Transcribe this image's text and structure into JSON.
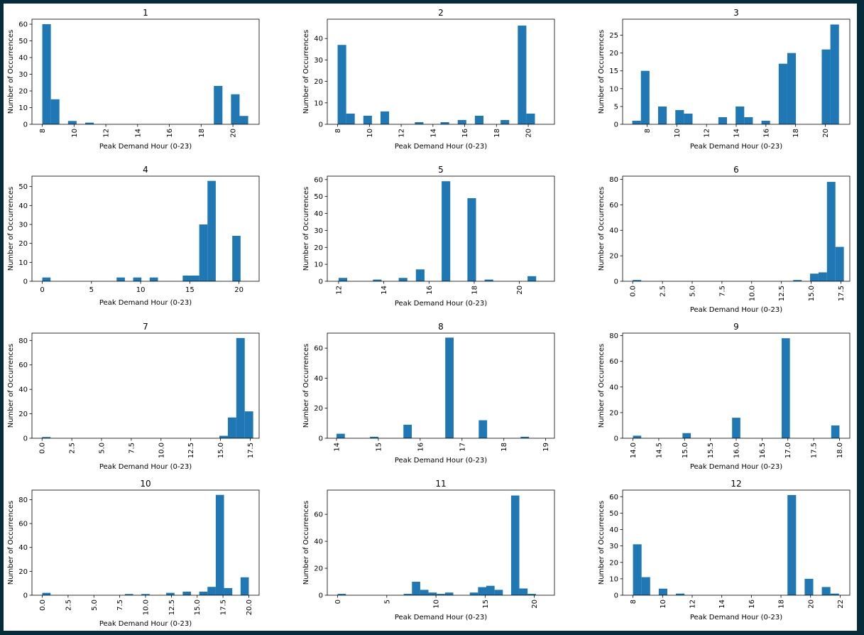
{
  "chart_data": [
    {
      "type": "bar",
      "title": "1",
      "xlabel": "Peak Demand Hour (0-23)",
      "ylabel": "Number of Occurrences",
      "xlim": [
        7.35,
        21.65
      ],
      "ylim": [
        0,
        63
      ],
      "xticks": [
        "8",
        "10",
        "12",
        "14",
        "16",
        "18",
        "20"
      ],
      "xtick_values": [
        8,
        10,
        12,
        14,
        16,
        18,
        20
      ],
      "xtick_rotation": 90,
      "yticks": [
        "0",
        "10",
        "20",
        "30",
        "40",
        "50",
        "60"
      ],
      "ytick_values": [
        0,
        10,
        20,
        30,
        40,
        50,
        60
      ],
      "bin_edges": [
        8.0,
        8.54,
        9.08,
        9.62,
        10.16,
        10.7,
        11.24,
        11.78,
        12.32,
        12.86,
        13.4,
        13.94,
        14.48,
        15.02,
        15.56,
        16.1,
        16.64,
        17.18,
        17.72,
        18.26,
        18.8,
        19.34,
        19.88,
        20.42,
        20.96,
        21.5
      ],
      "values": [
        60,
        15,
        0,
        2,
        0,
        1,
        0,
        0,
        0,
        0,
        0,
        0,
        0,
        0,
        0,
        0,
        0,
        0,
        0,
        0,
        23,
        0,
        18,
        5,
        0
      ]
    },
    {
      "type": "bar",
      "title": "2",
      "xlabel": "Peak Demand Hour (0-23)",
      "ylabel": "Number of Occurrences",
      "xlim": [
        7.35,
        21.65
      ],
      "ylim": [
        0,
        49
      ],
      "xticks": [
        "8",
        "10",
        "12",
        "14",
        "16",
        "18",
        "20"
      ],
      "xtick_values": [
        8,
        10,
        12,
        14,
        16,
        18,
        20
      ],
      "xtick_rotation": 90,
      "yticks": [
        "0",
        "10",
        "20",
        "30",
        "40"
      ],
      "ytick_values": [
        0,
        10,
        20,
        30,
        40
      ],
      "bin_edges": [
        8.0,
        8.54,
        9.08,
        9.62,
        10.16,
        10.7,
        11.24,
        11.78,
        12.32,
        12.86,
        13.4,
        13.94,
        14.48,
        15.02,
        15.56,
        16.1,
        16.64,
        17.18,
        17.72,
        18.26,
        18.8,
        19.34,
        19.88,
        20.42,
        20.96,
        21.5
      ],
      "values": [
        37,
        5,
        0,
        4,
        0,
        6,
        0,
        0,
        0,
        1,
        0,
        0,
        1,
        0,
        2,
        0,
        4,
        0,
        0,
        2,
        0,
        46,
        5,
        0,
        0
      ]
    },
    {
      "type": "bar",
      "title": "3",
      "xlabel": "Peak Demand Hour (0-23)",
      "ylabel": "Number of Occurrences",
      "xlim": [
        6.35,
        21.65
      ],
      "ylim": [
        0,
        29.5
      ],
      "xticks": [
        "8",
        "10",
        "12",
        "14",
        "16",
        "18",
        "20"
      ],
      "xtick_values": [
        8,
        10,
        12,
        14,
        16,
        18,
        20
      ],
      "xtick_rotation": 90,
      "yticks": [
        "0",
        "5",
        "10",
        "15",
        "20",
        "25"
      ],
      "ytick_values": [
        0,
        5,
        10,
        15,
        20,
        25
      ],
      "bin_edges": [
        7.0,
        7.58,
        8.16,
        8.74,
        9.32,
        9.9,
        10.48,
        11.06,
        11.64,
        12.22,
        12.8,
        13.38,
        13.96,
        14.54,
        15.12,
        15.7,
        16.28,
        16.86,
        17.44,
        18.02,
        18.6,
        19.18,
        19.76,
        20.34,
        20.92,
        21.5
      ],
      "values": [
        1,
        15,
        0,
        5,
        0,
        4,
        3,
        0,
        0,
        0,
        2,
        0,
        5,
        2,
        0,
        1,
        0,
        17,
        20,
        0,
        0,
        0,
        21,
        28,
        0
      ]
    },
    {
      "type": "bar",
      "title": "4",
      "xlabel": "Peak Demand Hour (0-23)",
      "ylabel": "Number of Occurrences",
      "xlim": [
        -1.05,
        22.05
      ],
      "ylim": [
        0,
        55.5
      ],
      "xticks": [
        "0",
        "5",
        "10",
        "15",
        "20"
      ],
      "xtick_values": [
        0,
        5,
        10,
        15,
        20
      ],
      "xtick_rotation": 0,
      "yticks": [
        "0",
        "10",
        "20",
        "30",
        "40",
        "50"
      ],
      "ytick_values": [
        0,
        10,
        20,
        30,
        40,
        50
      ],
      "bin_edges": [
        0.0,
        0.84,
        1.68,
        2.52,
        3.36,
        4.2,
        5.04,
        5.88,
        6.72,
        7.56,
        8.4,
        9.24,
        10.08,
        10.92,
        11.76,
        12.6,
        13.44,
        14.28,
        15.12,
        15.96,
        16.8,
        17.64,
        18.48,
        19.32,
        20.16,
        21.0
      ],
      "values": [
        2,
        0,
        0,
        0,
        0,
        0,
        0,
        0,
        0,
        2,
        0,
        2,
        0,
        2,
        0,
        0,
        0,
        3,
        3,
        30,
        53,
        0,
        0,
        24,
        0
      ]
    },
    {
      "type": "bar",
      "title": "5",
      "xlabel": "Peak Demand Hour (0-23)",
      "ylabel": "Number of Occurrences",
      "xlim": [
        11.5,
        21.55
      ],
      "ylim": [
        0,
        62
      ],
      "xticks": [
        "12",
        "14",
        "16",
        "18",
        "20"
      ],
      "xtick_values": [
        12,
        14,
        16,
        18,
        20
      ],
      "xtick_rotation": 90,
      "yticks": [
        "0",
        "10",
        "20",
        "30",
        "40",
        "50",
        "60"
      ],
      "ytick_values": [
        0,
        10,
        20,
        30,
        40,
        50,
        60
      ],
      "bin_edges": [
        12.0,
        12.38,
        12.76,
        13.14,
        13.52,
        13.9,
        14.28,
        14.66,
        15.04,
        15.42,
        15.8,
        16.18,
        16.56,
        16.94,
        17.32,
        17.7,
        18.08,
        18.46,
        18.84,
        19.22,
        19.6,
        19.98,
        20.36,
        20.74,
        21.12,
        21.5
      ],
      "values": [
        2,
        0,
        0,
        0,
        1,
        0,
        0,
        2,
        0,
        7,
        0,
        0,
        59,
        0,
        0,
        49,
        0,
        1,
        0,
        0,
        0,
        0,
        3,
        0,
        0
      ]
    },
    {
      "type": "bar",
      "title": "6",
      "xlabel": "Peak Demand Hour (0-23)",
      "ylabel": "Number of Occurrences",
      "xlim": [
        -0.85,
        18.25
      ],
      "ylim": [
        0,
        82.5
      ],
      "xticks": [
        "0.0",
        "2.5",
        "5.0",
        "7.5",
        "10.0",
        "12.5",
        "15.0",
        "17.5"
      ],
      "xtick_values": [
        0,
        2.5,
        5,
        7.5,
        10,
        12.5,
        15,
        17.5
      ],
      "xtick_rotation": 90,
      "yticks": [
        "0",
        "20",
        "40",
        "60",
        "80"
      ],
      "ytick_values": [
        0,
        20,
        40,
        60,
        80
      ],
      "bin_edges": [
        0.0,
        0.71,
        1.42,
        2.13,
        2.84,
        3.55,
        4.26,
        4.97,
        5.68,
        6.39,
        7.1,
        7.81,
        8.52,
        9.23,
        9.94,
        10.65,
        11.36,
        12.07,
        12.78,
        13.49,
        14.2,
        14.91,
        15.62,
        16.33,
        17.04,
        17.75
      ],
      "values": [
        1,
        0,
        0,
        0,
        0,
        0,
        0,
        0,
        0,
        0,
        0,
        0,
        0,
        0,
        0,
        0,
        0,
        0,
        0,
        1,
        0,
        6,
        7,
        78,
        27
      ]
    },
    {
      "type": "bar",
      "title": "7",
      "xlabel": "Peak Demand Hour (0-23)",
      "ylabel": "Number of Occurrences",
      "xlim": [
        -0.85,
        18.25
      ],
      "ylim": [
        0,
        86
      ],
      "xticks": [
        "0.0",
        "2.5",
        "5.0",
        "7.5",
        "10.0",
        "12.5",
        "15.0",
        "17.5"
      ],
      "xtick_values": [
        0,
        2.5,
        5,
        7.5,
        10,
        12.5,
        15,
        17.5
      ],
      "xtick_rotation": 90,
      "yticks": [
        "0",
        "20",
        "40",
        "60",
        "80"
      ],
      "ytick_values": [
        0,
        20,
        40,
        60,
        80
      ],
      "bin_edges": [
        0.0,
        0.71,
        1.42,
        2.13,
        2.84,
        3.55,
        4.26,
        4.97,
        5.68,
        6.39,
        7.1,
        7.81,
        8.52,
        9.23,
        9.94,
        10.65,
        11.36,
        12.07,
        12.78,
        13.49,
        14.2,
        14.91,
        15.62,
        16.33,
        17.04,
        17.75
      ],
      "values": [
        1,
        0,
        0,
        0,
        0,
        0,
        0,
        0,
        0,
        0,
        0,
        0,
        0,
        0,
        0,
        0,
        0,
        0,
        0,
        0,
        0,
        2,
        17,
        82,
        22
      ]
    },
    {
      "type": "bar",
      "title": "8",
      "xlabel": "Peak Demand Hour (0-23)",
      "ylabel": "Number of Occurrences",
      "xlim": [
        13.78,
        19.21
      ],
      "ylim": [
        0,
        70
      ],
      "xticks": [
        "14",
        "15",
        "16",
        "17",
        "18",
        "19"
      ],
      "xtick_values": [
        14,
        15,
        16,
        17,
        18,
        19
      ],
      "xtick_rotation": 90,
      "yticks": [
        "0",
        "20",
        "40",
        "60"
      ],
      "ytick_values": [
        0,
        20,
        40,
        60
      ],
      "bin_edges": [
        14.0,
        14.2,
        14.4,
        14.6,
        14.8,
        15.0,
        15.2,
        15.4,
        15.6,
        15.8,
        16.0,
        16.2,
        16.4,
        16.6,
        16.8,
        17.0,
        17.2,
        17.4,
        17.6,
        17.8,
        18.0,
        18.2,
        18.4,
        18.6,
        18.8,
        19.0
      ],
      "values": [
        3,
        0,
        0,
        0,
        1,
        0,
        0,
        0,
        9,
        0,
        0,
        0,
        0,
        67,
        0,
        0,
        0,
        12,
        0,
        0,
        0,
        0,
        1,
        0,
        0
      ]
    },
    {
      "type": "bar",
      "title": "9",
      "xlabel": "Peak Demand Hour (0-23)",
      "ylabel": "Number of Occurrences",
      "xlim": [
        13.8,
        18.2
      ],
      "ylim": [
        0,
        82
      ],
      "xticks": [
        "14.0",
        "14.5",
        "15.0",
        "15.5",
        "16.0",
        "16.5",
        "17.0",
        "17.5",
        "18.0"
      ],
      "xtick_values": [
        14,
        14.5,
        15,
        15.5,
        16,
        16.5,
        17,
        17.5,
        18
      ],
      "xtick_rotation": 90,
      "yticks": [
        "0",
        "20",
        "40",
        "60",
        "80"
      ],
      "ytick_values": [
        0,
        20,
        40,
        60,
        80
      ],
      "bin_edges": [
        14.0,
        14.16,
        14.32,
        14.48,
        14.64,
        14.8,
        14.96,
        15.12,
        15.28,
        15.44,
        15.6,
        15.76,
        15.92,
        16.08,
        16.24,
        16.4,
        16.56,
        16.72,
        16.88,
        17.04,
        17.2,
        17.36,
        17.52,
        17.68,
        17.84,
        18.0
      ],
      "values": [
        2,
        0,
        0,
        0,
        0,
        0,
        4,
        0,
        0,
        0,
        0,
        0,
        16,
        0,
        0,
        0,
        0,
        0,
        78,
        0,
        0,
        0,
        0,
        0,
        10
      ]
    },
    {
      "type": "bar",
      "title": "10",
      "xlabel": "Peak Demand Hour (0-23)",
      "ylabel": "Number of Occurrences",
      "xlim": [
        -1.0,
        21.0
      ],
      "ylim": [
        0,
        88
      ],
      "xticks": [
        "0.0",
        "2.5",
        "5.0",
        "7.5",
        "10.0",
        "12.5",
        "15.0",
        "17.5",
        "20.0"
      ],
      "xtick_values": [
        0,
        2.5,
        5,
        7.5,
        10,
        12.5,
        15,
        17.5,
        20
      ],
      "xtick_rotation": 90,
      "yticks": [
        "0",
        "20",
        "40",
        "60",
        "80"
      ],
      "ytick_values": [
        0,
        20,
        40,
        60,
        80
      ],
      "bin_edges": [
        0.0,
        0.8,
        1.6,
        2.4,
        3.2,
        4.0,
        4.8,
        5.6,
        6.4,
        7.2,
        8.0,
        8.8,
        9.6,
        10.4,
        11.2,
        12.0,
        12.8,
        13.6,
        14.4,
        15.2,
        16.0,
        16.8,
        17.6,
        18.4,
        19.2,
        20.0
      ],
      "values": [
        2,
        0,
        0,
        0,
        0,
        0,
        0,
        0,
        0,
        0,
        1,
        0,
        1,
        0,
        0,
        2,
        0,
        3,
        0,
        3,
        7,
        84,
        6,
        0,
        15
      ]
    },
    {
      "type": "bar",
      "title": "11",
      "xlabel": "Peak Demand Hour (0-23)",
      "ylabel": "Number of Occurrences",
      "xlim": [
        -1.05,
        22.05
      ],
      "ylim": [
        0,
        78
      ],
      "xticks": [
        "0",
        "5",
        "10",
        "15",
        "20"
      ],
      "xtick_values": [
        0,
        5,
        10,
        15,
        20
      ],
      "xtick_rotation": 90,
      "yticks": [
        "0",
        "20",
        "40",
        "60"
      ],
      "ytick_values": [
        0,
        20,
        40,
        60
      ],
      "bin_edges": [
        0.0,
        0.84,
        1.68,
        2.52,
        3.36,
        4.2,
        5.04,
        5.88,
        6.72,
        7.56,
        8.4,
        9.24,
        10.08,
        10.92,
        11.76,
        12.6,
        13.44,
        14.28,
        15.12,
        15.96,
        16.8,
        17.64,
        18.48,
        19.32,
        20.16,
        21.0
      ],
      "values": [
        1,
        0,
        0,
        0,
        0,
        0,
        0,
        0,
        1,
        10,
        4,
        2,
        1,
        2,
        0,
        0,
        2,
        6,
        7,
        4,
        0,
        74,
        5,
        1,
        0
      ]
    },
    {
      "type": "bar",
      "title": "12",
      "xlabel": "Peak Demand Hour (0-23)",
      "ylabel": "Number of Occurrences",
      "xlim": [
        7.3,
        22.65
      ],
      "ylim": [
        0,
        64
      ],
      "xticks": [
        "8",
        "10",
        "12",
        "14",
        "16",
        "18",
        "20",
        "22"
      ],
      "xtick_values": [
        8,
        10,
        12,
        14,
        16,
        18,
        20,
        22
      ],
      "xtick_rotation": 90,
      "yticks": [
        "0",
        "10",
        "20",
        "30",
        "40",
        "50",
        "60"
      ],
      "ytick_values": [
        0,
        10,
        20,
        30,
        40,
        50,
        60
      ],
      "bin_edges": [
        8.0,
        8.58,
        9.16,
        9.74,
        10.32,
        10.9,
        11.48,
        12.06,
        12.64,
        13.22,
        13.8,
        14.38,
        14.96,
        15.54,
        16.12,
        16.7,
        17.28,
        17.86,
        18.44,
        19.02,
        19.6,
        20.18,
        20.76,
        21.34,
        21.92,
        22.5
      ],
      "values": [
        31,
        11,
        0,
        4,
        0,
        1,
        0,
        0,
        0,
        0,
        0,
        0,
        0,
        0,
        0,
        0,
        0,
        0,
        61,
        0,
        10,
        0,
        5,
        1,
        0
      ]
    }
  ],
  "colors": {
    "bar": "#1f77b4",
    "background": "#062b3a",
    "panel": "#ffffff"
  }
}
